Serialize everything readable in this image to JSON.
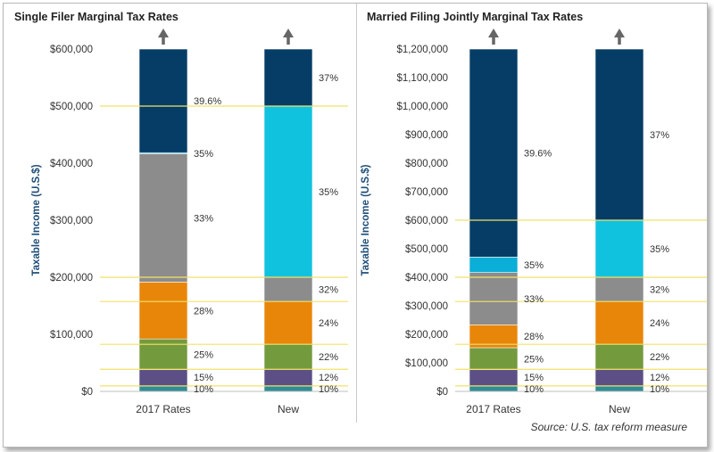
{
  "source": "Source: U.S. tax reform measure",
  "colors": {
    "10": "#2e8d96",
    "12": "#5b4f86",
    "15": "#5b4f86",
    "22": "#749a3e",
    "24": "#e8860a",
    "25": "#749a3e",
    "28": "#e8860a",
    "32": "#8c8c8c",
    "33": "#8c8c8c",
    "35_old": "#0aaed6",
    "35_new": "#11c2df",
    "37": "#063d66",
    "39.6": "#063d66",
    "threshold_line": "#f2e16a",
    "axis_label": "#1f4e79",
    "arrow": "#666666"
  },
  "chart_data": [
    {
      "type": "bar",
      "stacked": true,
      "title": "Single Filer Marginal Tax Rates",
      "ylabel": "Taxable Income (U.S.$)",
      "ylim": [
        0,
        600000
      ],
      "yticks": [
        0,
        100000,
        200000,
        300000,
        400000,
        500000,
        600000
      ],
      "ytick_labels": [
        "$0",
        "$100,000",
        "$200,000",
        "$300,000",
        "$400,000",
        "$500,000",
        "$600,000"
      ],
      "categories": [
        "2017 Rates",
        "New"
      ],
      "bars": [
        {
          "category": "2017 Rates",
          "segments": [
            {
              "label": "10%",
              "from": 0,
              "to": 9325,
              "color_key": "10"
            },
            {
              "label": "15%",
              "from": 9325,
              "to": 37950,
              "color_key": "15"
            },
            {
              "label": "25%",
              "from": 37950,
              "to": 91900,
              "color_key": "25"
            },
            {
              "label": "28%",
              "from": 91900,
              "to": 191650,
              "color_key": "28"
            },
            {
              "label": "33%",
              "from": 191650,
              "to": 416700,
              "color_key": "33"
            },
            {
              "label": "35%",
              "from": 416700,
              "to": 418400,
              "color_key": "35_old"
            },
            {
              "label": "39.6%",
              "from": 418400,
              "to": 600000,
              "color_key": "39.6"
            }
          ]
        },
        {
          "category": "New",
          "segments": [
            {
              "label": "10%",
              "from": 0,
              "to": 9525,
              "color_key": "10"
            },
            {
              "label": "12%",
              "from": 9525,
              "to": 38700,
              "color_key": "12"
            },
            {
              "label": "22%",
              "from": 38700,
              "to": 82500,
              "color_key": "22"
            },
            {
              "label": "24%",
              "from": 82500,
              "to": 157500,
              "color_key": "24"
            },
            {
              "label": "32%",
              "from": 157500,
              "to": 200000,
              "color_key": "32"
            },
            {
              "label": "35%",
              "from": 200000,
              "to": 500000,
              "color_key": "35_new"
            },
            {
              "label": "37%",
              "from": 500000,
              "to": 600000,
              "color_key": "37"
            }
          ]
        }
      ]
    },
    {
      "type": "bar",
      "stacked": true,
      "title": "Married Filing Jointly Marginal Tax Rates",
      "ylabel": "Taxable Income (U.S.$)",
      "ylim": [
        0,
        1200000
      ],
      "yticks": [
        0,
        100000,
        200000,
        300000,
        400000,
        500000,
        600000,
        700000,
        800000,
        900000,
        1000000,
        1100000,
        1200000
      ],
      "ytick_labels": [
        "$0",
        "$100,000",
        "$200,000",
        "$300,000",
        "$400,000",
        "$500,000",
        "$600,000",
        "$700,000",
        "$800,000",
        "$900,000",
        "$1,000,000",
        "$1,100,000",
        "$1,200,000"
      ],
      "categories": [
        "2017 Rates",
        "New"
      ],
      "bars": [
        {
          "category": "2017 Rates",
          "segments": [
            {
              "label": "10%",
              "from": 0,
              "to": 18650,
              "color_key": "10"
            },
            {
              "label": "15%",
              "from": 18650,
              "to": 75900,
              "color_key": "15"
            },
            {
              "label": "25%",
              "from": 75900,
              "to": 153100,
              "color_key": "25"
            },
            {
              "label": "28%",
              "from": 153100,
              "to": 233350,
              "color_key": "28"
            },
            {
              "label": "33%",
              "from": 233350,
              "to": 416700,
              "color_key": "33"
            },
            {
              "label": "35%",
              "from": 416700,
              "to": 470700,
              "color_key": "35_old"
            },
            {
              "label": "39.6%",
              "from": 470700,
              "to": 1200000,
              "color_key": "39.6"
            }
          ]
        },
        {
          "category": "New",
          "segments": [
            {
              "label": "10%",
              "from": 0,
              "to": 19050,
              "color_key": "10"
            },
            {
              "label": "12%",
              "from": 19050,
              "to": 77400,
              "color_key": "12"
            },
            {
              "label": "22%",
              "from": 77400,
              "to": 165000,
              "color_key": "22"
            },
            {
              "label": "24%",
              "from": 165000,
              "to": 315000,
              "color_key": "24"
            },
            {
              "label": "32%",
              "from": 315000,
              "to": 400000,
              "color_key": "32"
            },
            {
              "label": "35%",
              "from": 400000,
              "to": 600000,
              "color_key": "35_new"
            },
            {
              "label": "37%",
              "from": 600000,
              "to": 1200000,
              "color_key": "37"
            }
          ]
        }
      ]
    }
  ]
}
